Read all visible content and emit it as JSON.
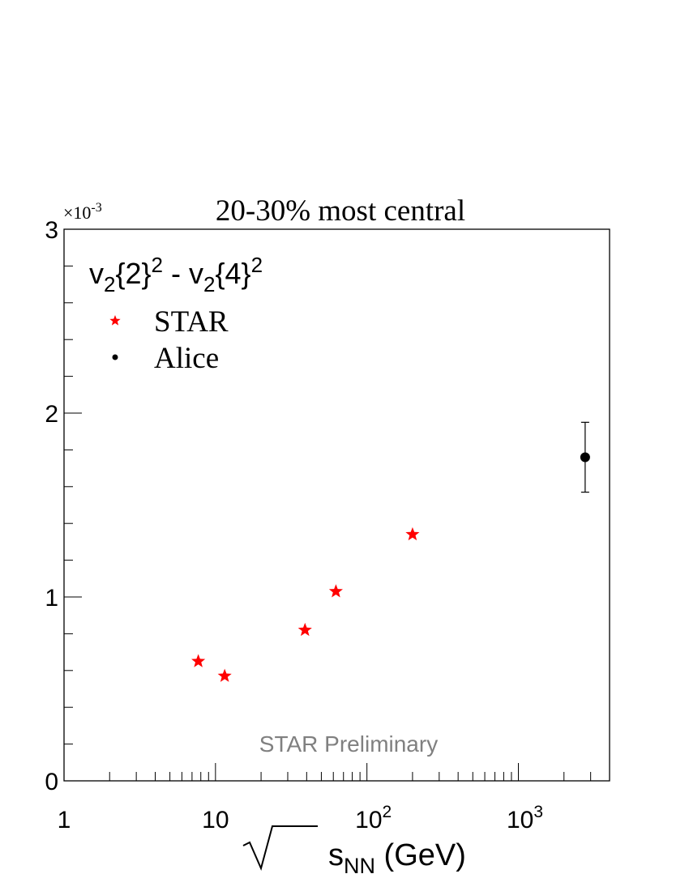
{
  "chart_data": {
    "type": "scatter",
    "title": "20-30% most central",
    "xscale": "log",
    "xlim": [
      1,
      4000
    ],
    "ylim": [
      0,
      0.003
    ],
    "y_multiplier_label": "×10",
    "y_multiplier_exp": "-3",
    "xlabel": {
      "base": "s",
      "sub": "NN",
      "unit": " (GeV)"
    },
    "x_ticks": [
      {
        "value": 1,
        "label": "1",
        "sup": ""
      },
      {
        "value": 10,
        "label": "10",
        "sup": ""
      },
      {
        "value": 100,
        "label": "10",
        "sup": "2"
      },
      {
        "value": 1000,
        "label": "10",
        "sup": "3"
      }
    ],
    "y_ticks": [
      {
        "value": 0,
        "label": "0"
      },
      {
        "value": 0.001,
        "label": "1"
      },
      {
        "value": 0.002,
        "label": "2"
      },
      {
        "value": 0.003,
        "label": "3"
      }
    ],
    "legend": {
      "header": {
        "a": "v",
        "a_sub": "2",
        "a_br": "{2}",
        "a_sup": "2",
        "sep": " - ",
        "b": "v",
        "b_sub": "2",
        "b_br": "{4}",
        "b_sup": "2"
      },
      "placement": "top-left"
    },
    "series": [
      {
        "name": "STAR",
        "marker": "star",
        "color": "#ff0000",
        "points": [
          {
            "x": 7.7,
            "y": 0.00065
          },
          {
            "x": 11.5,
            "y": 0.00057
          },
          {
            "x": 39,
            "y": 0.00082
          },
          {
            "x": 62.4,
            "y": 0.00103
          },
          {
            "x": 200,
            "y": 0.00134
          }
        ]
      },
      {
        "name": "Alice",
        "marker": "circle",
        "color": "#000000",
        "points": [
          {
            "x": 2760,
            "y": 0.00176,
            "yerr": 0.00019
          }
        ]
      }
    ],
    "annotation": "STAR Preliminary",
    "annotation_color": "#808080"
  }
}
